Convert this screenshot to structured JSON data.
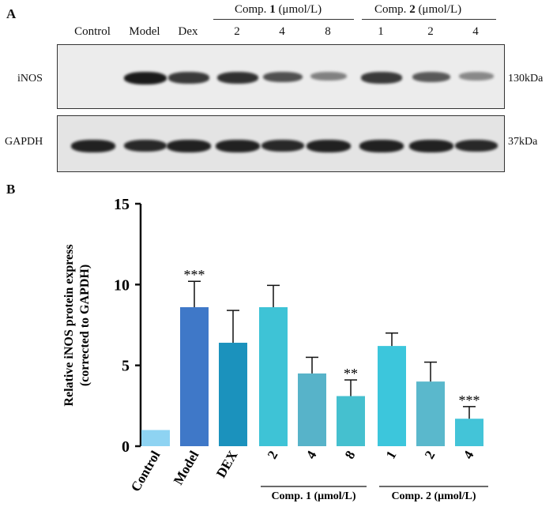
{
  "panel_a": {
    "letter": "A",
    "lanes": [
      "Control",
      "Model",
      "Dex",
      "2",
      "4",
      "8",
      "1",
      "2",
      "4"
    ],
    "group1": {
      "prefix": "Comp. ",
      "bold": "1",
      "suffix": " (μmol/L)"
    },
    "group2": {
      "prefix": "Comp. ",
      "bold": "2",
      "suffix": " (μmol/L)"
    },
    "row1_label": "iNOS",
    "row1_size": "130kDa",
    "row2_label": "GAPDH",
    "row2_size": "37kDa",
    "inos_intensity": [
      0.0,
      1.0,
      0.8,
      0.85,
      0.65,
      0.35,
      0.8,
      0.6,
      0.3
    ],
    "gapdh_intensity": [
      0.95,
      0.9,
      0.95,
      0.95,
      0.9,
      0.95,
      0.95,
      0.95,
      0.9
    ]
  },
  "panel_b": {
    "letter": "B",
    "group1_label": "Comp. 1 (μmol/L)",
    "group2_label": "Comp. 2 (μmol/L)"
  },
  "chart_data": {
    "type": "bar",
    "categories": [
      "Control",
      "Model",
      "DEX",
      "2",
      "4",
      "8",
      "1",
      "2",
      "4"
    ],
    "values": [
      1.0,
      8.6,
      6.4,
      8.6,
      4.5,
      3.1,
      6.2,
      4.0,
      1.7
    ],
    "errors": [
      0,
      1.6,
      2.0,
      1.35,
      1.0,
      1.0,
      0.8,
      1.2,
      0.75
    ],
    "significance": [
      "",
      "***",
      "",
      "",
      "",
      "**",
      "",
      "",
      "***"
    ],
    "colors": [
      "#8ed3f2",
      "#3f78c8",
      "#1b92bd",
      "#3ec3d6",
      "#57b3c9",
      "#45c0cf",
      "#3cc6dc",
      "#5ab8cc",
      "#43c4d8"
    ],
    "ylabel": "Relative iNOS protein express (corrected to GAPDH)",
    "yticks": [
      0,
      5,
      10,
      15
    ],
    "ylim": [
      0,
      15
    ]
  }
}
